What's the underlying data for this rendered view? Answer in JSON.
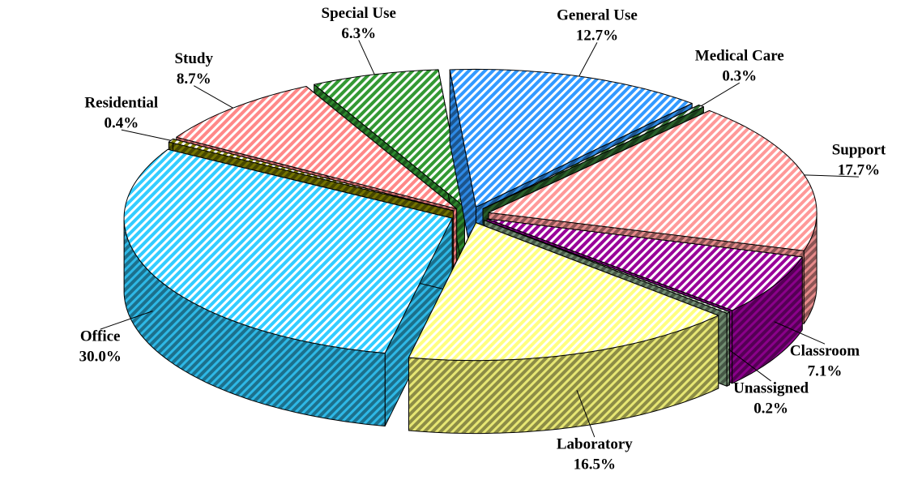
{
  "chart_data": {
    "type": "pie3d",
    "categories": [
      "General Use",
      "Medical Care",
      "Support",
      "Classroom",
      "Unassigned",
      "Laboratory",
      "Office",
      "Residential",
      "Study",
      "Special Use"
    ],
    "values": [
      12.7,
      0.3,
      17.7,
      7.1,
      0.2,
      16.5,
      30.0,
      0.4,
      8.7,
      6.3
    ],
    "value_labels": [
      "12.7%",
      "0.3%",
      "17.7%",
      "7.1%",
      "0.2%",
      "16.5%",
      "30.0%",
      "0.4%",
      "8.7%",
      "6.3%"
    ],
    "colors": [
      "#3399ff",
      "#2f6b2f",
      "#ff9999",
      "#990099",
      "#7f9f7f",
      "#ffff80",
      "#33ccff",
      "#808000",
      "#ff8888",
      "#339933"
    ]
  }
}
